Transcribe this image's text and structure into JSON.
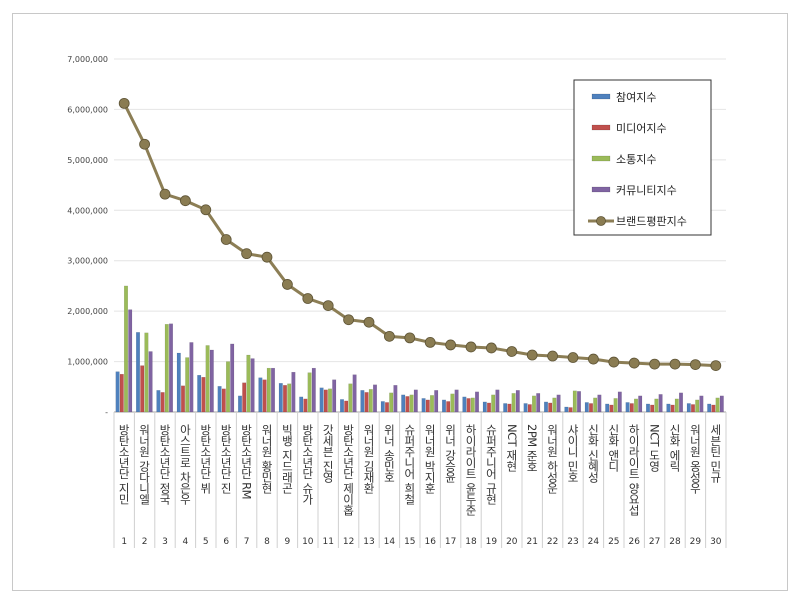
{
  "chart_data": {
    "type": "bar",
    "title": "",
    "xlabel": "",
    "ylabel": "",
    "ylim": [
      0,
      7000000
    ],
    "yticks": [
      "-",
      "1,000,000",
      "2,000,000",
      "3,000,000",
      "4,000,000",
      "5,000,000",
      "6,000,000",
      "7,000,000"
    ],
    "grid": true,
    "legend_position": "top-right",
    "ranks": [
      1,
      2,
      3,
      4,
      5,
      6,
      7,
      8,
      9,
      10,
      11,
      12,
      13,
      14,
      15,
      16,
      17,
      18,
      19,
      20,
      21,
      22,
      23,
      24,
      25,
      26,
      27,
      28,
      29,
      30
    ],
    "categories": [
      "방탄소년단 지민",
      "워너원 강다니엘",
      "방탄소년단 정국",
      "아스트로 차은우",
      "방탄소년단 뷔",
      "방탄소년단 진",
      "방탄소년단 RM",
      "워너원 황민현",
      "빅뱅 지드래곤",
      "방탄소년단 슈가",
      "갓세븐 진영",
      "방탄소년단 제이홉",
      "워너원 김재환",
      "위너 송민호",
      "슈퍼주니어 희철",
      "워너원 박지훈",
      "위너 강승윤",
      "하이라이트 윤두준",
      "슈퍼주니어 규현",
      "NCT 재현",
      "2PM 준호",
      "워너원 하성운",
      "샤이니 민호",
      "신화 신혜성",
      "신화 앤디",
      "하이라이트 양요섭",
      "NCT 도영",
      "신화 에릭",
      "워너원 옹성우",
      "세븐틴 민규"
    ],
    "series": [
      {
        "name": "참여지수",
        "kind": "bar",
        "color": "#4f81bd",
        "values": [
          800000,
          1580000,
          430000,
          1170000,
          730000,
          510000,
          320000,
          680000,
          570000,
          300000,
          480000,
          250000,
          430000,
          210000,
          340000,
          270000,
          240000,
          300000,
          200000,
          170000,
          170000,
          200000,
          100000,
          190000,
          160000,
          190000,
          160000,
          160000,
          170000,
          160000
        ]
      },
      {
        "name": "미디어지수",
        "kind": "bar",
        "color": "#c0504d",
        "values": [
          750000,
          920000,
          390000,
          520000,
          690000,
          460000,
          580000,
          640000,
          530000,
          260000,
          440000,
          220000,
          390000,
          190000,
          310000,
          240000,
          210000,
          270000,
          180000,
          160000,
          150000,
          180000,
          90000,
          170000,
          140000,
          170000,
          140000,
          140000,
          150000,
          140000
        ]
      },
      {
        "name": "소통지수",
        "kind": "bar",
        "color": "#9bbb59",
        "values": [
          2500000,
          1570000,
          1740000,
          1080000,
          1320000,
          1000000,
          1130000,
          870000,
          560000,
          780000,
          460000,
          560000,
          450000,
          380000,
          340000,
          330000,
          360000,
          280000,
          340000,
          370000,
          320000,
          280000,
          420000,
          280000,
          270000,
          260000,
          260000,
          260000,
          240000,
          280000
        ]
      },
      {
        "name": "커뮤니티지수",
        "kind": "bar",
        "color": "#8064a2",
        "values": [
          2030000,
          1200000,
          1750000,
          1380000,
          1230000,
          1350000,
          1060000,
          870000,
          790000,
          870000,
          640000,
          740000,
          540000,
          530000,
          440000,
          430000,
          440000,
          400000,
          440000,
          430000,
          370000,
          340000,
          410000,
          340000,
          400000,
          320000,
          350000,
          380000,
          320000,
          320000
        ]
      },
      {
        "name": "브랜드평판지수",
        "kind": "line",
        "color": "#8c7e55",
        "values": [
          6120000,
          5310000,
          4320000,
          4190000,
          4010000,
          3420000,
          3140000,
          3070000,
          2530000,
          2250000,
          2110000,
          1830000,
          1780000,
          1500000,
          1470000,
          1380000,
          1330000,
          1290000,
          1270000,
          1200000,
          1130000,
          1110000,
          1080000,
          1050000,
          990000,
          970000,
          950000,
          950000,
          940000,
          920000
        ]
      }
    ]
  }
}
